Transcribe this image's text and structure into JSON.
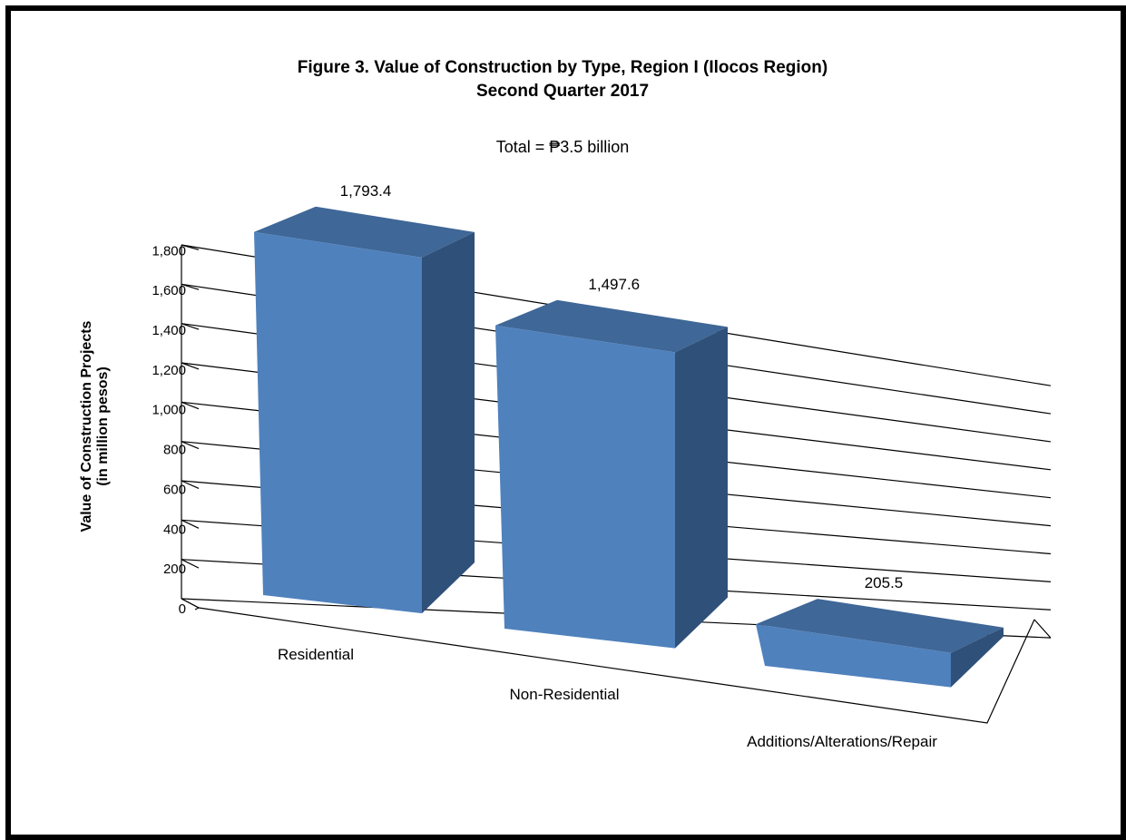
{
  "chart_data": {
    "type": "bar",
    "title": "Figure 3. Value of Construction by Type, Region I (Ilocos Region)",
    "subtitle": "Second Quarter 2017",
    "annotation": "Total = ₱3.5 billion",
    "categories": [
      "Residential",
      "Non-Residential",
      "Additions/Alterations/Repair"
    ],
    "values": [
      1793.4,
      1497.6,
      205.5
    ],
    "data_labels": [
      "1,793.4",
      "1,497.6",
      "205.5"
    ],
    "ylabel_line1": "Value of Construction Projects",
    "ylabel_line2": "(in million pesos)",
    "yticks": [
      "0",
      "200",
      "400",
      "600",
      "800",
      "1,000",
      "1,200",
      "1,400",
      "1,600",
      "1,800"
    ],
    "ylim": [
      0,
      1800
    ],
    "grid": true,
    "style": "3d-column",
    "colors": {
      "front": "#4f81bd",
      "top": "#3f6797",
      "side": "#2f5079"
    }
  }
}
